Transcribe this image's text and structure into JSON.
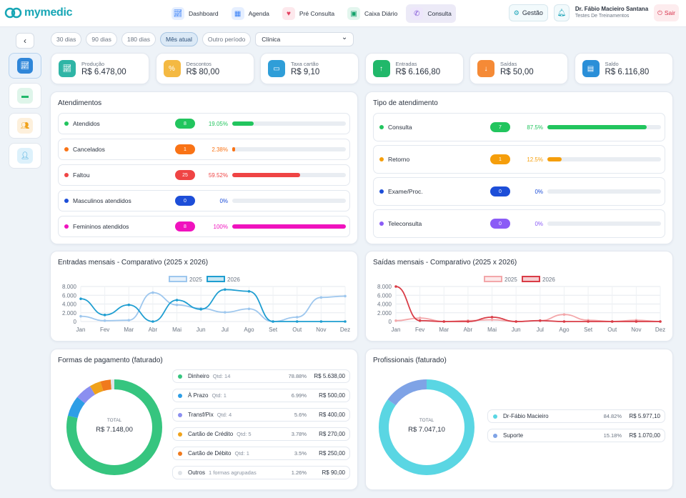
{
  "brand": {
    "name": "mymedic"
  },
  "nav": [
    {
      "label": "Dashboard",
      "icon": "chart-icon",
      "color": "#3b82f6",
      "bg": "#e6efff"
    },
    {
      "label": "Agenda",
      "icon": "calendar-icon",
      "color": "#3b82f6",
      "bg": "#e6efff"
    },
    {
      "label": "Pré Consulta",
      "icon": "heart-icon",
      "color": "#e33f5f",
      "bg": "#fde8ec"
    },
    {
      "label": "Caixa Diário",
      "icon": "cashier-icon",
      "color": "#14a36b",
      "bg": "#e3f6ee"
    },
    {
      "label": "Consulta",
      "icon": "phone-icon",
      "color": "#7c4dd6",
      "bg": "#ede6fb"
    }
  ],
  "header": {
    "gestao": "Gestão",
    "user_name": "Dr. Fábio Macieiro Santana",
    "user_sub": "Testes De Treinamentos",
    "logout": "Sair"
  },
  "filters": {
    "options": [
      "30 dias",
      "90 dias",
      "180 dias",
      "Mês atual",
      "Outro período"
    ],
    "active": "Mês atual",
    "select": "Clínica"
  },
  "kpis": [
    {
      "label": "Produção",
      "value": "R$ 6.478,00",
      "color": "#2fb5a6",
      "icon": "chart-icon"
    },
    {
      "label": "Descontos",
      "value": "R$ 80,00",
      "color": "#f4b942",
      "icon": "percent-icon"
    },
    {
      "label": "Taxa cartão",
      "value": "R$ 9,10",
      "color": "#2f9ed8",
      "icon": "card-icon"
    },
    {
      "label": "Entradas",
      "value": "R$ 6.166,80",
      "color": "#21b86a",
      "icon": "arrow-up-icon"
    },
    {
      "label": "Saídas",
      "value": "R$ 50,00",
      "color": "#f58a36",
      "icon": "arrow-down-icon"
    },
    {
      "label": "Saldo",
      "value": "R$ 6.116,80",
      "color": "#2a8fd8",
      "icon": "wallet-icon"
    }
  ],
  "atendimentos": {
    "title": "Atendimentos",
    "rows": [
      {
        "label": "Atendidos",
        "count": "8",
        "pct": "19.05%",
        "fraction": 0.1905,
        "color": "#22c55e"
      },
      {
        "label": "Cancelados",
        "count": "1",
        "pct": "2.38%",
        "fraction": 0.0238,
        "color": "#f97316"
      },
      {
        "label": "Faltou",
        "count": "25",
        "pct": "59.52%",
        "fraction": 0.5952,
        "color": "#ef4444"
      },
      {
        "label": "Masculinos atendidos",
        "count": "0",
        "pct": "0%",
        "fraction": 0,
        "color": "#1d4ed8"
      },
      {
        "label": "Femininos atendidos",
        "count": "8",
        "pct": "100%",
        "fraction": 1,
        "color": "#f012be"
      }
    ]
  },
  "tipo": {
    "title": "Tipo de atendimento",
    "rows": [
      {
        "label": "Consulta",
        "count": "7",
        "pct": "87.5%",
        "fraction": 0.875,
        "color": "#22c55e"
      },
      {
        "label": "Retorno",
        "count": "1",
        "pct": "12.5%",
        "fraction": 0.125,
        "color": "#f59e0b"
      },
      {
        "label": "Exame/Proc.",
        "count": "0",
        "pct": "0%",
        "fraction": 0,
        "color": "#1d4ed8"
      },
      {
        "label": "Teleconsulta",
        "count": "0",
        "pct": "0%",
        "fraction": 0,
        "color": "#8b5cf6"
      }
    ]
  },
  "chart_data": [
    {
      "type": "line",
      "title": "Entradas mensais - Comparativo (2025 x 2026)",
      "x": [
        "Jan",
        "Fev",
        "Mar",
        "Abr",
        "Mai",
        "Jun",
        "Jul",
        "Ago",
        "Set",
        "Out",
        "Nov",
        "Dez"
      ],
      "ylim": [
        0,
        8000
      ],
      "yticks": [
        "0",
        "2.000",
        "4.000",
        "6.000",
        "8.000"
      ],
      "series": [
        {
          "name": "2025",
          "color": "#9ec7ee",
          "values": [
            1200,
            200,
            300,
            6600,
            3800,
            3000,
            2100,
            2900,
            0,
            1000,
            5500,
            5800
          ]
        },
        {
          "name": "2026",
          "color": "#1f9ed1",
          "values": [
            5200,
            1500,
            3800,
            0,
            4900,
            2800,
            7300,
            6900,
            0,
            0,
            0,
            0
          ]
        }
      ]
    },
    {
      "type": "line",
      "title": "Saídas mensais - Comparativo (2025 x 2026)",
      "x": [
        "Jan",
        "Fev",
        "Mar",
        "Abr",
        "Mai",
        "Jun",
        "Jul",
        "Ago",
        "Set",
        "Out",
        "Nov",
        "Dez"
      ],
      "ylim": [
        0,
        8000
      ],
      "yticks": [
        "0",
        "2.000",
        "4.000",
        "6.000",
        "8.000"
      ],
      "series": [
        {
          "name": "2025",
          "color": "#f3a7aa",
          "values": [
            200,
            800,
            0,
            200,
            400,
            0,
            200,
            1600,
            300,
            0,
            300,
            0
          ]
        },
        {
          "name": "2026",
          "color": "#d93c46",
          "values": [
            8000,
            200,
            0,
            0,
            1000,
            0,
            200,
            0,
            0,
            0,
            0,
            0
          ]
        }
      ]
    },
    {
      "type": "pie",
      "title": "Formas de pagamento (faturado)",
      "total_label": "TOTAL",
      "total": "R$ 7.148,00",
      "slices": [
        {
          "name": "Dinheiro",
          "qtd": "Qtd: 14",
          "pct": "78.88%",
          "pct_value": 78.88,
          "value": "R$ 5.638,00",
          "color": "#36c57f"
        },
        {
          "name": "À Prazo",
          "qtd": "Qtd: 1",
          "pct": "6.99%",
          "pct_value": 6.99,
          "value": "R$ 500,00",
          "color": "#2d9ee6"
        },
        {
          "name": "Transf/Pix",
          "qtd": "Qtd: 4",
          "pct": "5.6%",
          "pct_value": 5.6,
          "value": "R$ 400,00",
          "color": "#8b8ff0"
        },
        {
          "name": "Cartão de Crédito",
          "qtd": "Qtd: 5",
          "pct": "3.78%",
          "pct_value": 3.78,
          "value": "R$ 270,00",
          "color": "#f0a21a"
        },
        {
          "name": "Cartão de Débito",
          "qtd": "Qtd: 1",
          "pct": "3.5%",
          "pct_value": 3.5,
          "value": "R$ 250,00",
          "color": "#f07a1d"
        },
        {
          "name": "Outros",
          "qtd": "1 formas agrupadas",
          "pct": "1.26%",
          "pct_value": 1.26,
          "value": "R$ 90,00",
          "color": "#dfe3e8"
        }
      ]
    },
    {
      "type": "pie",
      "title": "Profissionais (faturado)",
      "total_label": "TOTAL",
      "total": "R$ 7.047,10",
      "slices": [
        {
          "name": "Dr-Fábio Macieiro",
          "pct": "84.82%",
          "pct_value": 84.82,
          "value": "R$ 5.977,10",
          "color": "#5ad6e3"
        },
        {
          "name": "Suporte",
          "pct": "15.18%",
          "pct_value": 15.18,
          "value": "R$ 1.070,00",
          "color": "#7fa3e6"
        }
      ]
    }
  ]
}
